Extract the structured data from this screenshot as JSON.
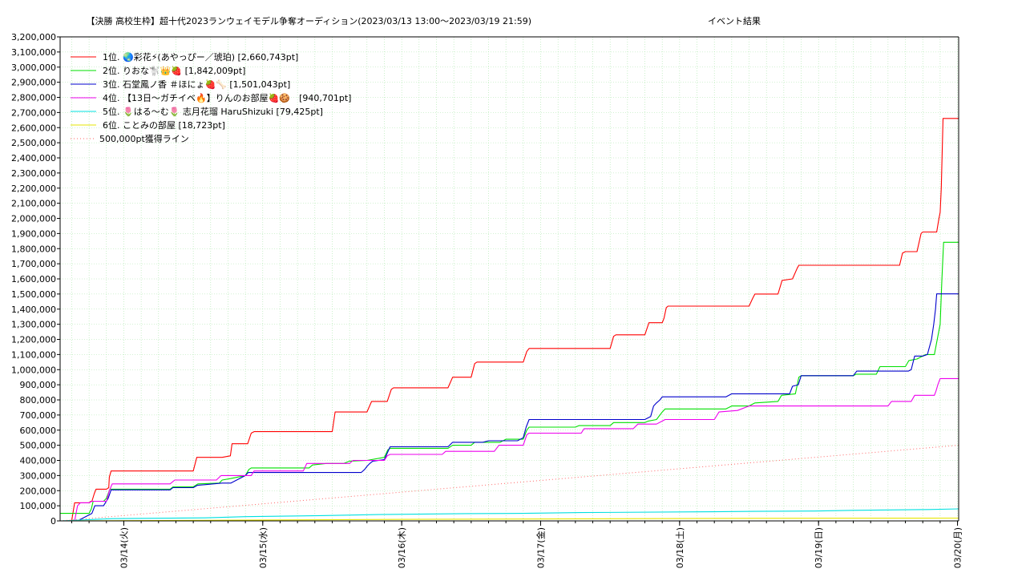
{
  "chart_data": {
    "type": "line",
    "title_parts": [
      "【決勝 高校生枠】超十代2023ランウェイモデル争奪オーディション(2023/03/13 13:00〜2023/03/19 21:59)",
      "イベント結果"
    ],
    "xlabel": "",
    "ylabel": "",
    "x_ticks": [
      "03/14(火)",
      "03/15(水)",
      "03/16(木)",
      "03/17(金)",
      "03/18(土)",
      "03/19(日)",
      "03/20(月)"
    ],
    "x_tick_hours": [
      11,
      35,
      59,
      83,
      107,
      131,
      155
    ],
    "x_range_hours": [
      0,
      155.2
    ],
    "x_unit": "hours since 2023/03/13 13:00",
    "ylim": [
      0,
      3200000
    ],
    "y_step": 100000,
    "y_tick_labels": [
      "0",
      "100,000",
      "200,000",
      "300,000",
      "400,000",
      "500,000",
      "600,000",
      "700,000",
      "800,000",
      "900,000",
      "1,000,000",
      "1,100,000",
      "1,200,000",
      "1,300,000",
      "1,400,000",
      "1,500,000",
      "1,600,000",
      "1,700,000",
      "1,800,000",
      "1,900,000",
      "2,000,000",
      "2,100,000",
      "2,200,000",
      "2,300,000",
      "2,400,000",
      "2,500,000",
      "2,600,000",
      "2,700,000",
      "2,800,000",
      "2,900,000",
      "3,000,000",
      "3,100,000",
      "3,200,000"
    ],
    "grid": true,
    "legend_position": "top-left",
    "series": [
      {
        "name": "1位. 🌏彩花⚡(あやっぴー／琥珀) [2,660,743pt]",
        "color": "#ff0000",
        "dash": "",
        "points": [
          [
            0,
            0
          ],
          [
            2,
            0
          ],
          [
            2.5,
            120000
          ],
          [
            5,
            120000
          ],
          [
            5.3,
            130000
          ],
          [
            5.5,
            130000
          ],
          [
            5.9,
            180000
          ],
          [
            6.2,
            210000
          ],
          [
            8,
            210000
          ],
          [
            8.4,
            220000
          ],
          [
            8.5,
            290000
          ],
          [
            8.8,
            330000
          ],
          [
            23,
            330000
          ],
          [
            23.6,
            420000
          ],
          [
            28,
            420000
          ],
          [
            29.4,
            430000
          ],
          [
            29.7,
            510000
          ],
          [
            32.4,
            510000
          ],
          [
            33,
            580000
          ],
          [
            33.5,
            590000
          ],
          [
            47,
            590000
          ],
          [
            47.5,
            720000
          ],
          [
            53,
            720000
          ],
          [
            53.8,
            790000
          ],
          [
            56.5,
            790000
          ],
          [
            57.2,
            870000
          ],
          [
            57.6,
            880000
          ],
          [
            67,
            880000
          ],
          [
            67.8,
            950000
          ],
          [
            71,
            950000
          ],
          [
            71.6,
            1040000
          ],
          [
            72,
            1050000
          ],
          [
            80,
            1050000
          ],
          [
            80.6,
            1120000
          ],
          [
            81,
            1140000
          ],
          [
            95,
            1140000
          ],
          [
            95.6,
            1220000
          ],
          [
            96,
            1230000
          ],
          [
            101,
            1230000
          ],
          [
            101.7,
            1310000
          ],
          [
            104,
            1310000
          ],
          [
            104.3,
            1340000
          ],
          [
            104.7,
            1410000
          ],
          [
            105,
            1420000
          ],
          [
            119,
            1420000
          ],
          [
            119.6,
            1470000
          ],
          [
            120,
            1500000
          ],
          [
            124,
            1500000
          ],
          [
            124.7,
            1590000
          ],
          [
            126.5,
            1600000
          ],
          [
            127.3,
            1670000
          ],
          [
            127.6,
            1690000
          ],
          [
            145,
            1690000
          ],
          [
            145.5,
            1770000
          ],
          [
            146,
            1780000
          ],
          [
            148,
            1780000
          ],
          [
            148.7,
            1900000
          ],
          [
            149,
            1910000
          ],
          [
            151.4,
            1910000
          ],
          [
            151.8,
            2000000
          ],
          [
            152,
            2040000
          ],
          [
            152.2,
            2200000
          ],
          [
            152.5,
            2660743
          ],
          [
            155.2,
            2660743
          ]
        ]
      },
      {
        "name": "2位. りおな🐩👑🍓 [1,842,009pt]",
        "color": "#00e000",
        "dash": "",
        "points": [
          [
            0,
            50000
          ],
          [
            3,
            50000
          ],
          [
            5,
            50000
          ],
          [
            5.4,
            80000
          ],
          [
            5.7,
            130000
          ],
          [
            7.5,
            130000
          ],
          [
            8,
            150000
          ],
          [
            8.6,
            210000
          ],
          [
            19,
            210000
          ],
          [
            19.5,
            225000
          ],
          [
            23,
            225000
          ],
          [
            23.8,
            245000
          ],
          [
            27.5,
            250000
          ],
          [
            28,
            270000
          ],
          [
            29.5,
            280000
          ],
          [
            32,
            300000
          ],
          [
            32.6,
            340000
          ],
          [
            33,
            350000
          ],
          [
            43,
            350000
          ],
          [
            43.6,
            370000
          ],
          [
            46,
            380000
          ],
          [
            49,
            380000
          ],
          [
            50,
            395000
          ],
          [
            53,
            400000
          ],
          [
            56,
            420000
          ],
          [
            56.6,
            470000
          ],
          [
            57,
            480000
          ],
          [
            67,
            480000
          ],
          [
            67.8,
            500000
          ],
          [
            71,
            500000
          ],
          [
            71.6,
            520000
          ],
          [
            76,
            520000
          ],
          [
            77,
            540000
          ],
          [
            80,
            540000
          ],
          [
            80.6,
            600000
          ],
          [
            81,
            620000
          ],
          [
            89,
            620000
          ],
          [
            89.6,
            630000
          ],
          [
            95,
            630000
          ],
          [
            95.6,
            650000
          ],
          [
            101,
            650000
          ],
          [
            101.6,
            660000
          ],
          [
            103,
            670000
          ],
          [
            104,
            720000
          ],
          [
            104.5,
            740000
          ],
          [
            115,
            740000
          ],
          [
            116,
            760000
          ],
          [
            119,
            760000
          ],
          [
            120,
            780000
          ],
          [
            124,
            790000
          ],
          [
            124.6,
            830000
          ],
          [
            127,
            840000
          ],
          [
            127.6,
            950000
          ],
          [
            128,
            960000
          ],
          [
            137,
            960000
          ],
          [
            137.5,
            970000
          ],
          [
            141,
            970000
          ],
          [
            141.6,
            1020000
          ],
          [
            146,
            1020000
          ],
          [
            146.6,
            1060000
          ],
          [
            148,
            1070000
          ],
          [
            149.5,
            1100000
          ],
          [
            151,
            1100000
          ],
          [
            152,
            1300000
          ],
          [
            152.3,
            1600000
          ],
          [
            152.6,
            1842009
          ],
          [
            155.2,
            1842009
          ]
        ]
      },
      {
        "name": "3位. 石堂鳳ノ香 ＃ほにょ🍓🦴 [1,501,043pt]",
        "color": "#0000cc",
        "dash": "",
        "points": [
          [
            0,
            0
          ],
          [
            3,
            0
          ],
          [
            5.5,
            50000
          ],
          [
            6,
            100000
          ],
          [
            7.5,
            100000
          ],
          [
            8.3,
            150000
          ],
          [
            8.8,
            205000
          ],
          [
            19,
            205000
          ],
          [
            19.5,
            220000
          ],
          [
            23,
            220000
          ],
          [
            23.7,
            235000
          ],
          [
            28,
            250000
          ],
          [
            29.5,
            250000
          ],
          [
            32,
            300000
          ],
          [
            32.5,
            320000
          ],
          [
            52,
            320000
          ],
          [
            52.6,
            340000
          ],
          [
            53,
            360000
          ],
          [
            53.5,
            380000
          ],
          [
            54,
            395000
          ],
          [
            56,
            405000
          ],
          [
            56.4,
            440000
          ],
          [
            57,
            490000
          ],
          [
            67,
            490000
          ],
          [
            67.8,
            520000
          ],
          [
            73,
            520000
          ],
          [
            74,
            530000
          ],
          [
            79,
            530000
          ],
          [
            80,
            550000
          ],
          [
            80.5,
            620000
          ],
          [
            81,
            670000
          ],
          [
            101,
            670000
          ],
          [
            102,
            690000
          ],
          [
            102.5,
            760000
          ],
          [
            103,
            780000
          ],
          [
            103.6,
            800000
          ],
          [
            104,
            820000
          ],
          [
            115,
            820000
          ],
          [
            116,
            840000
          ],
          [
            126,
            840000
          ],
          [
            126.5,
            890000
          ],
          [
            127.5,
            900000
          ],
          [
            128,
            960000
          ],
          [
            137,
            960000
          ],
          [
            137.6,
            990000
          ],
          [
            141,
            990000
          ],
          [
            146.5,
            990000
          ],
          [
            147,
            1000000
          ],
          [
            147.6,
            1090000
          ],
          [
            149,
            1090000
          ],
          [
            149.8,
            1100000
          ],
          [
            150.5,
            1200000
          ],
          [
            150.9,
            1300000
          ],
          [
            151.2,
            1400000
          ],
          [
            151.4,
            1501043
          ],
          [
            155.2,
            1501043
          ]
        ]
      },
      {
        "name": "4位. 【13日〜ガチイベ🔥】りんのお部屋🍓🍪　[940,701pt]",
        "color": "#ee00ee",
        "dash": "",
        "points": [
          [
            0,
            0
          ],
          [
            2.5,
            0
          ],
          [
            3,
            100000
          ],
          [
            3.5,
            120000
          ],
          [
            5,
            120000
          ],
          [
            5.5,
            130000
          ],
          [
            8,
            130000
          ],
          [
            8.5,
            200000
          ],
          [
            9,
            245000
          ],
          [
            19,
            245000
          ],
          [
            19.8,
            270000
          ],
          [
            27,
            270000
          ],
          [
            27.8,
            300000
          ],
          [
            33,
            300000
          ],
          [
            33.5,
            330000
          ],
          [
            42,
            330000
          ],
          [
            42.6,
            380000
          ],
          [
            50,
            380000
          ],
          [
            50.6,
            400000
          ],
          [
            56,
            400000
          ],
          [
            56.5,
            430000
          ],
          [
            57,
            440000
          ],
          [
            66,
            440000
          ],
          [
            66.6,
            460000
          ],
          [
            75,
            460000
          ],
          [
            75.8,
            500000
          ],
          [
            80,
            500000
          ],
          [
            80.6,
            570000
          ],
          [
            81,
            580000
          ],
          [
            90,
            580000
          ],
          [
            90.5,
            610000
          ],
          [
            99,
            610000
          ],
          [
            99.8,
            640000
          ],
          [
            103,
            640000
          ],
          [
            104,
            660000
          ],
          [
            104.5,
            670000
          ],
          [
            113,
            670000
          ],
          [
            113.8,
            720000
          ],
          [
            117,
            730000
          ],
          [
            119,
            760000
          ],
          [
            143,
            760000
          ],
          [
            143.6,
            790000
          ],
          [
            147,
            790000
          ],
          [
            147.6,
            830000
          ],
          [
            151,
            830000
          ],
          [
            151.3,
            860000
          ],
          [
            151.6,
            900000
          ],
          [
            152,
            940701
          ],
          [
            155.2,
            940701
          ]
        ]
      },
      {
        "name": "5位. 🌷はる〜む🌷 志月花瑠 HaruShizuki [79,425pt]",
        "color": "#00e0e0",
        "dash": "",
        "points": [
          [
            0,
            0
          ],
          [
            9,
            15000
          ],
          [
            25,
            20000
          ],
          [
            32,
            28000
          ],
          [
            45,
            35000
          ],
          [
            55,
            42000
          ],
          [
            70,
            48000
          ],
          [
            80,
            50000
          ],
          [
            90,
            55000
          ],
          [
            110,
            60000
          ],
          [
            120,
            63000
          ],
          [
            130,
            65000
          ],
          [
            137,
            70000
          ],
          [
            150,
            75000
          ],
          [
            155.2,
            79425
          ]
        ]
      },
      {
        "name": "6位. ことみの部屋 [18,723pt]",
        "color": "#e6e600",
        "dash": "",
        "points": [
          [
            0,
            0
          ],
          [
            30,
            5000
          ],
          [
            60,
            10000
          ],
          [
            90,
            14000
          ],
          [
            120,
            17000
          ],
          [
            155.2,
            18723
          ]
        ]
      },
      {
        "name": "500,000pt獲得ライン",
        "color": "#ff6666",
        "dash": "1,3",
        "points": [
          [
            0,
            0
          ],
          [
            155.2,
            500000
          ]
        ]
      }
    ]
  }
}
